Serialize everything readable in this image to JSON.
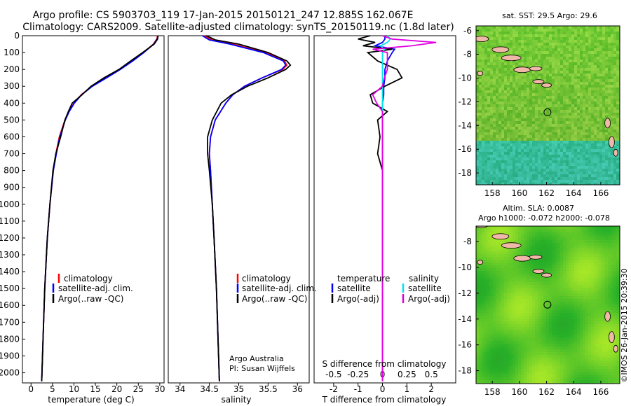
{
  "header": {
    "line1": "Argo profile: CS 5903703_119 17-Jan-2015 20150121_247 12.885S 162.067E",
    "line2": "Climatology: CARS2009. Satellite-adjusted climatology: synTS_20150119.nc (1.8d later)"
  },
  "colors": {
    "climatology": "#ff0000",
    "satellite": "#0000ff",
    "argo": "#000000",
    "salinity_sat": "#00e5ee",
    "salinity_argo": "#e000e0",
    "map_green": "#3fd23f",
    "land": "#f0b8a8"
  },
  "panels": {
    "temperature": {
      "xlabel": "temperature (deg C)",
      "legend": [
        "climatology",
        "satellite-adj. clim.",
        "Argo(..raw -QC)"
      ]
    },
    "salinity": {
      "xlabel": "salinity",
      "legend": [
        "climatology",
        "satellite-adj. clim.",
        "Argo(..raw -QC)"
      ],
      "credit1": "Argo Australia",
      "credit2": "PI: Susan Wijffels"
    },
    "difference": {
      "legend_left_title": "temperature",
      "legend_left": [
        "satellite",
        "Argo(-adj)"
      ],
      "legend_right_title": "salinity",
      "legend_right": [
        "satellite",
        "Argo(-adj)"
      ],
      "top_label": "S difference from climatology",
      "xlabel": "T difference from climatology"
    },
    "sst_map": {
      "title": "sat. SST: 29.5 Argo: 29.6"
    },
    "sla_map": {
      "title1": "Altim. SLA: 0.0087",
      "title2": "Argo h1000: -0.072 h2000: -0.078"
    },
    "stamp": "©IMOS 26-Jan-2015 20:39:30"
  },
  "chart_data": [
    {
      "type": "line",
      "xlabel": "temperature (deg C)",
      "xlim": [
        -2,
        31
      ],
      "ylim": [
        2060,
        0
      ],
      "xticks": [
        0,
        5,
        10,
        15,
        20,
        25,
        30
      ],
      "yticks": [
        0,
        100,
        200,
        300,
        400,
        500,
        600,
        700,
        800,
        900,
        1000,
        1100,
        1200,
        1300,
        1400,
        1500,
        1600,
        1700,
        1800,
        1900,
        2000
      ],
      "depth": [
        0,
        20,
        50,
        100,
        150,
        200,
        250,
        300,
        350,
        400,
        450,
        500,
        600,
        700,
        800,
        1000,
        1200,
        1500,
        1800,
        2050
      ],
      "series": [
        {
          "name": "climatology",
          "values": [
            29.5,
            29.3,
            28.5,
            26.2,
            23.6,
            20.6,
            17.5,
            14.2,
            11.7,
            10.0,
            8.8,
            7.9,
            6.6,
            5.8,
            5.2,
            4.4,
            3.8,
            3.2,
            2.8,
            2.5
          ]
        },
        {
          "name": "satellite-adj. clim.",
          "values": [
            29.6,
            29.4,
            28.6,
            26.3,
            23.7,
            20.8,
            17.6,
            14.3,
            11.8,
            10.1,
            8.9,
            8.0,
            6.7,
            5.9,
            5.2,
            4.4,
            3.8,
            3.2,
            2.8,
            2.5
          ]
        },
        {
          "name": "Argo(..raw -QC)",
          "values": [
            29.6,
            29.5,
            28.7,
            26.0,
            23.2,
            20.5,
            17.0,
            14.0,
            11.9,
            9.6,
            8.7,
            7.9,
            6.9,
            5.8,
            5.1,
            4.4,
            3.8,
            3.2,
            2.8,
            2.5
          ]
        }
      ]
    },
    {
      "type": "line",
      "xlabel": "salinity",
      "xlim": [
        33.8,
        36.2
      ],
      "ylim": [
        2060,
        0
      ],
      "xticks": [
        34,
        34.5,
        35,
        35.5,
        36
      ],
      "depth": [
        0,
        25,
        50,
        100,
        150,
        175,
        200,
        250,
        300,
        350,
        400,
        500,
        600,
        700,
        800,
        1000,
        1200,
        1500,
        2050
      ],
      "series": [
        {
          "name": "climatology",
          "values": [
            34.4,
            34.55,
            34.9,
            35.45,
            35.78,
            35.82,
            35.75,
            35.4,
            35.1,
            34.9,
            34.78,
            34.6,
            34.52,
            34.5,
            34.52,
            34.55,
            34.58,
            34.62,
            34.67
          ]
        },
        {
          "name": "satellite-adj. clim.",
          "values": [
            34.38,
            34.5,
            34.85,
            35.42,
            35.76,
            35.8,
            35.73,
            35.4,
            35.1,
            34.9,
            34.78,
            34.6,
            34.52,
            34.5,
            34.52,
            34.55,
            34.58,
            34.62,
            34.67
          ]
        },
        {
          "name": "Argo(..raw -QC)",
          "values": [
            34.45,
            34.6,
            35.0,
            35.5,
            35.82,
            35.88,
            35.8,
            35.5,
            35.15,
            34.88,
            34.7,
            34.55,
            34.47,
            34.47,
            34.5,
            34.55,
            34.58,
            34.62,
            34.67
          ]
        }
      ]
    },
    {
      "type": "line",
      "xlabel": "T difference from climatology",
      "xlim_T": [
        -2.8,
        3.0
      ],
      "xticks_T": [
        -2,
        -1,
        0,
        1,
        2
      ],
      "xticks_S": [
        -0.5,
        -0.25,
        0,
        0.25,
        0.5
      ],
      "ylim": [
        2060,
        0
      ],
      "depth": [
        0,
        20,
        40,
        60,
        80,
        100,
        150,
        200,
        250,
        300,
        350,
        400,
        450,
        500,
        600,
        700,
        800,
        1000,
        1500,
        2050
      ],
      "series": [
        {
          "name": "temperature satellite",
          "values": [
            0.1,
            0.1,
            0.0,
            -0.3,
            0.5,
            0.4,
            0.2,
            0.1,
            0.1,
            0.05,
            0.05,
            0.0,
            0.0,
            0.0,
            0.0,
            0.0,
            0.0,
            0.0,
            0.0,
            0.0
          ]
        },
        {
          "name": "temperature Argo(-adj)",
          "values": [
            -0.5,
            -1.0,
            -0.3,
            -0.8,
            0.4,
            -0.6,
            -0.2,
            0.6,
            0.8,
            0.1,
            -0.5,
            -0.4,
            0.2,
            -0.2,
            -0.1,
            -0.2,
            0.0,
            0.0,
            0.0,
            0.0
          ]
        },
        {
          "name": "salinity satellite",
          "values": [
            0.05,
            0.08,
            0.05,
            -0.02,
            0.02,
            0.0,
            0.0,
            0.0,
            0.0,
            0.0,
            0.0,
            0.0,
            0.0,
            0.0,
            0.0,
            0.0,
            0.0,
            0.0,
            0.0,
            0.0
          ]
        },
        {
          "name": "salinity Argo(-adj)",
          "values": [
            0.0,
            0.1,
            0.55,
            0.3,
            -0.1,
            0.05,
            0.05,
            0.05,
            0.02,
            0.0,
            -0.1,
            -0.06,
            0.0,
            0.0,
            0.0,
            0.0,
            0.0,
            0.0,
            0.0,
            0.0
          ]
        }
      ]
    },
    {
      "type": "heatmap",
      "title": "sat. SST: 29.5 Argo: 29.6",
      "xticks": [
        158,
        160,
        162,
        164,
        166
      ],
      "yticks": [
        -6,
        -8,
        -10,
        -12,
        -14,
        -16,
        -18
      ],
      "xlim": [
        156.8,
        167.4
      ],
      "ylim": [
        -19,
        -5.6
      ],
      "marker": {
        "lon": 162.067,
        "lat": -12.885
      }
    },
    {
      "type": "heatmap",
      "title": "Altim. SLA: 0.0087",
      "xticks": [
        158,
        160,
        162,
        164,
        166
      ],
      "yticks": [
        -8,
        -10,
        -12,
        -14,
        -16,
        -18
      ],
      "xlim": [
        156.8,
        167.4
      ],
      "ylim": [
        -19,
        -6.8
      ],
      "marker": {
        "lon": 162.067,
        "lat": -12.885
      }
    }
  ]
}
